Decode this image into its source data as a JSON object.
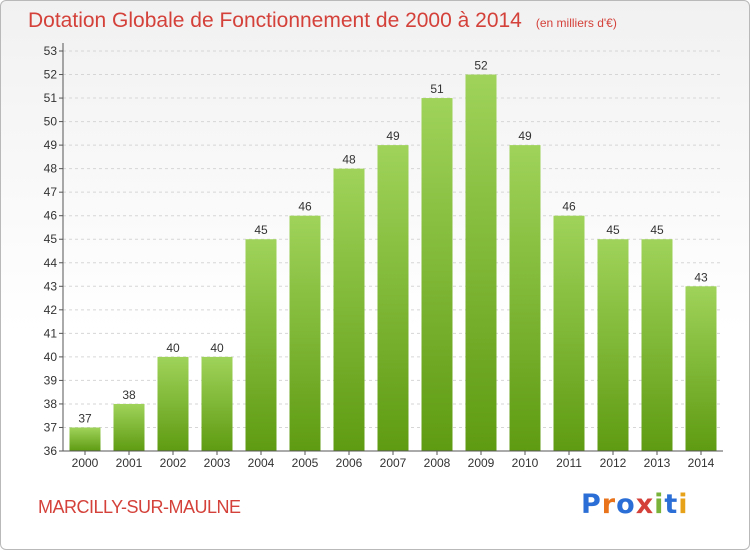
{
  "page": {
    "title": "Dotation Globale de Fonctionnement de 2000 à 2014",
    "unit_note": "(en milliers d'€)",
    "commune": "MARCILLY-SUR-MAULNE",
    "logo_text": "Proxiti",
    "logo_letters": [
      {
        "ch": "P",
        "color": "#2b6fd6"
      },
      {
        "ch": "r",
        "color": "#e8731a"
      },
      {
        "ch": "o",
        "color": "#2b6fd6"
      },
      {
        "ch": "x",
        "color": "#d4413a"
      },
      {
        "ch": "i",
        "color": "#7ab33a"
      },
      {
        "ch": "t",
        "color": "#2b6fd6"
      },
      {
        "ch": "i",
        "color": "#e8a21a"
      }
    ]
  },
  "chart_data": {
    "type": "bar",
    "categories": [
      "2000",
      "2001",
      "2002",
      "2003",
      "2004",
      "2005",
      "2006",
      "2007",
      "2008",
      "2009",
      "2010",
      "2011",
      "2012",
      "2013",
      "2014"
    ],
    "values": [
      37,
      38,
      40,
      40,
      45,
      46,
      48,
      49,
      51,
      52,
      49,
      46,
      45,
      45,
      43
    ],
    "title": "Dotation Globale de Fonctionnement de 2000 à 2014",
    "xlabel": "",
    "ylabel": "",
    "ylim": [
      36,
      53
    ],
    "yticks": [
      36,
      37,
      38,
      39,
      40,
      41,
      42,
      43,
      44,
      45,
      46,
      47,
      48,
      49,
      50,
      51,
      52,
      53
    ],
    "grid": true,
    "data_labels": true,
    "colors": {
      "bar_top": "#9fd35a",
      "bar_bottom": "#5f9b12",
      "grid": "#d6d6d6",
      "axis": "#555555",
      "text": "#333333",
      "title": "#d4413a"
    }
  }
}
